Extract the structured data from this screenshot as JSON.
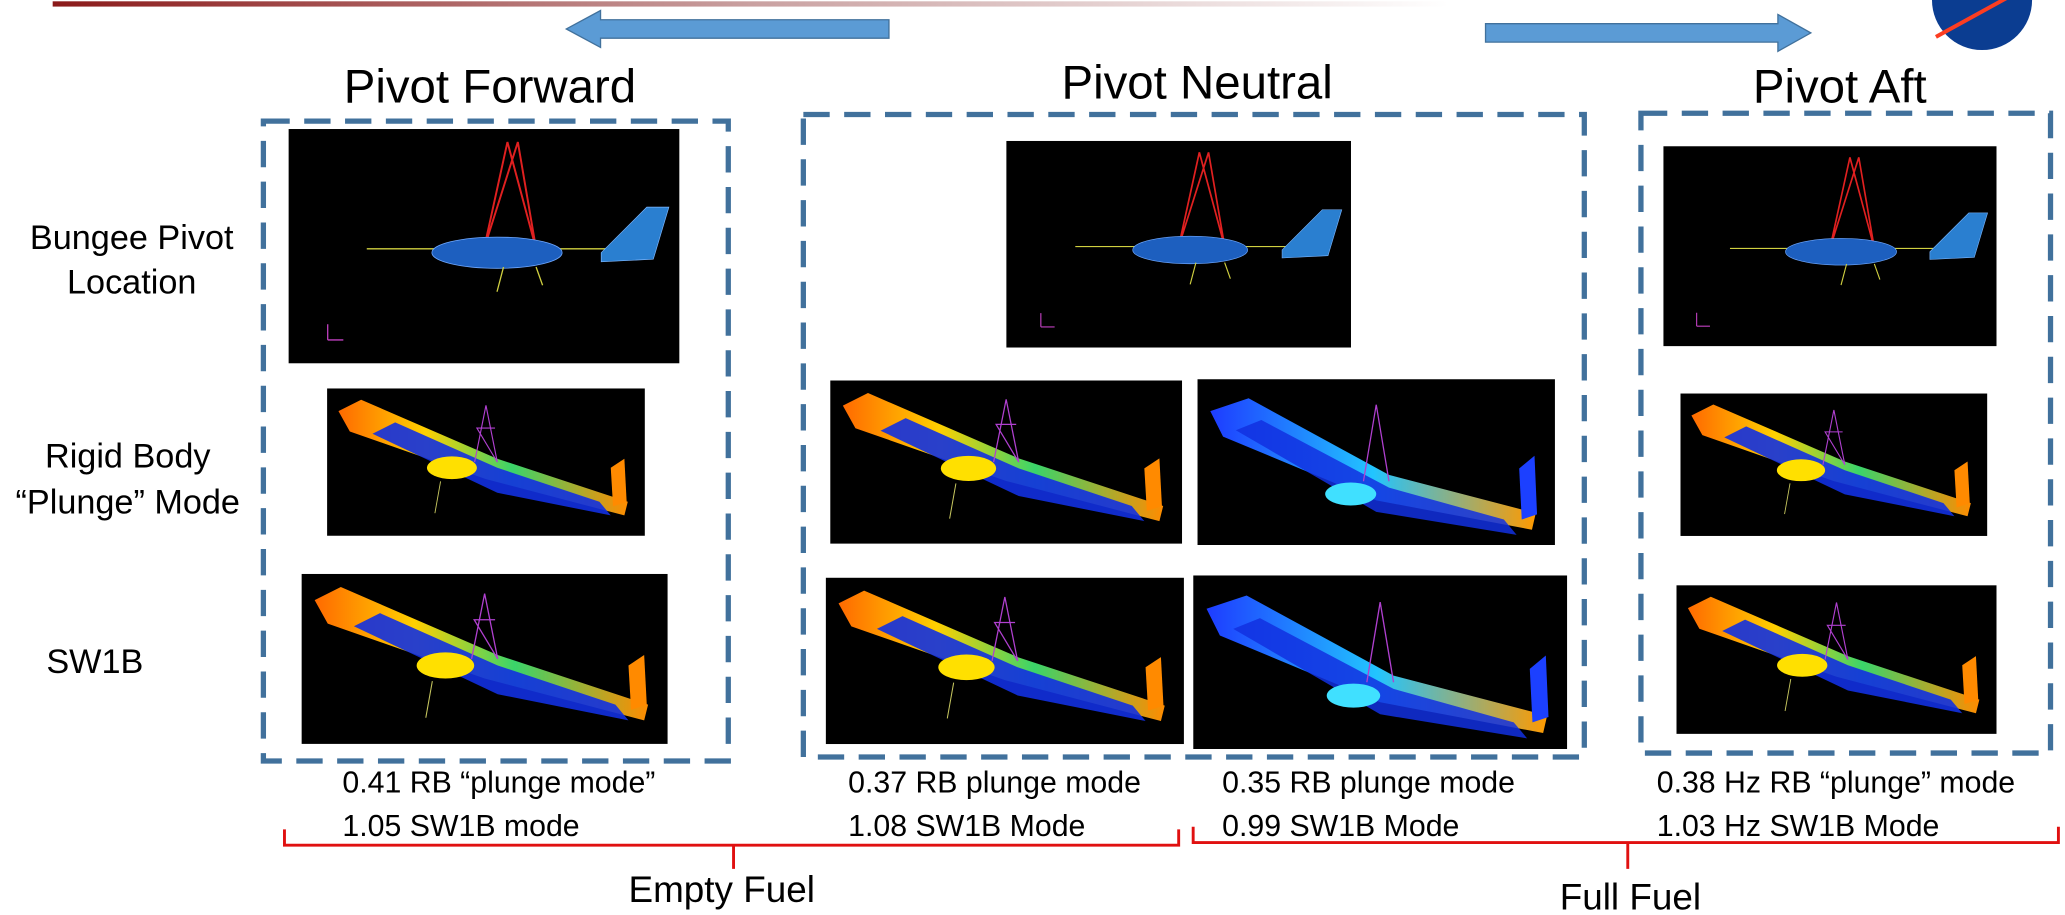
{
  "header": {
    "columns": [
      "Pivot Forward",
      "Pivot Neutral",
      "Pivot Aft"
    ]
  },
  "row_labels": [
    [
      "Bungee Pivot",
      "Location"
    ],
    [
      "Rigid Body",
      "“Plunge” Mode"
    ],
    [
      "SW1B"
    ]
  ],
  "captions": [
    [
      "0.41 RB “plunge mode”",
      "1.05 SW1B mode"
    ],
    [
      "0.37 RB plunge mode",
      "1.08 SW1B Mode"
    ],
    [
      "0.35 RB plunge mode",
      "0.99 SW1B Mode"
    ],
    [
      "0.38 Hz RB “plunge” mode",
      "1.03 Hz SW1B Mode"
    ]
  ],
  "fuel_groups": [
    "Empty Fuel",
    "Full Fuel"
  ]
}
